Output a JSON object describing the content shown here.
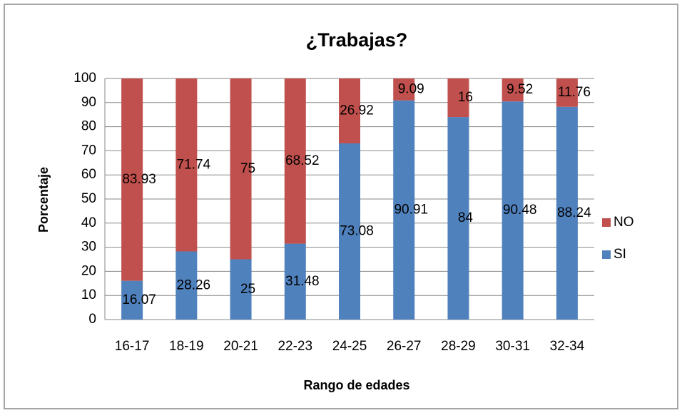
{
  "chart_data": {
    "type": "stacked_bar",
    "title": "¿Trabajas?",
    "x_label": "Rango de edades",
    "y_label": "Porcentaje",
    "categories": [
      "16-17",
      "18-19",
      "20-21",
      "22-23",
      "24-25",
      "26-27",
      "28-29",
      "30-31",
      "32-34"
    ],
    "series": [
      {
        "name": "SI",
        "color": "#4f81bd",
        "values": [
          16.07,
          28.26,
          25,
          31.48,
          73.08,
          90.91,
          84,
          90.48,
          88.24
        ]
      },
      {
        "name": "NO",
        "color": "#c0504d",
        "values": [
          83.93,
          71.74,
          75,
          68.52,
          26.92,
          9.09,
          16,
          9.52,
          11.76
        ]
      }
    ],
    "ylim": [
      0,
      100
    ],
    "yticks": [
      0,
      10,
      20,
      30,
      40,
      50,
      60,
      70,
      80,
      90,
      100
    ],
    "grid": true,
    "legend": "right"
  }
}
